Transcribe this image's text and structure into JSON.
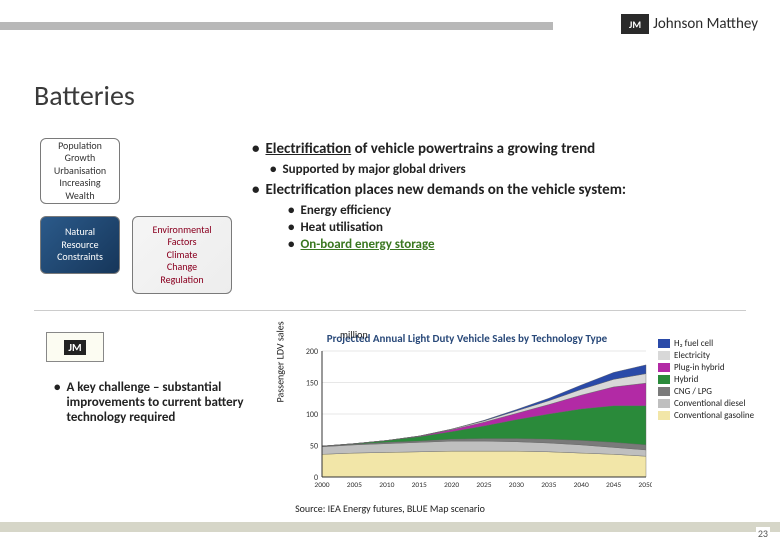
{
  "logo": {
    "initials": "JM",
    "name": "Johnson Matthey"
  },
  "title": "Batteries",
  "driver_boxes": {
    "box1": [
      "Population",
      "Growth",
      "Urbanisation",
      "Increasing",
      "Wealth"
    ],
    "box2": [
      "Natural",
      "Resource",
      "Constraints"
    ],
    "box3": [
      "Environmental",
      "Factors",
      "Climate",
      "Change",
      "Regulation"
    ]
  },
  "bullets": {
    "a": {
      "highlight": "Electrification",
      "rest": " of vehicle powertrains a growing trend"
    },
    "a1": "Supported by major global drivers",
    "b": "Electrification places new demands on the vehicle system:",
    "b1": "Energy efficiency",
    "b2": "Heat utilisation",
    "b3": "On-board energy storage"
  },
  "challenge": "A key challenge – substantial improvements to current battery technology required",
  "chart": {
    "title": "Projected Annual Light Duty Vehicle Sales by Technology Type",
    "unit": "million",
    "ylabel": "Passenger LDV sales",
    "xlim": [
      2000,
      2050
    ],
    "ylim": [
      0,
      200
    ],
    "yticks": [
      0,
      50,
      100,
      150,
      200
    ],
    "xticks": [
      2000,
      2005,
      2010,
      2015,
      2020,
      2025,
      2030,
      2035,
      2040,
      2045,
      2050
    ],
    "background_color": "#ffffff",
    "grid_color": "#cfcfcf",
    "series": [
      {
        "name": "Conventional gasoline",
        "color": "#f2e6a8",
        "values": [
          36,
          38,
          39,
          40,
          41,
          41,
          41,
          40,
          38,
          36,
          33
        ]
      },
      {
        "name": "Conventional diesel",
        "color": "#bfbfbf",
        "values": [
          12,
          13,
          14,
          15,
          16,
          16,
          15,
          14,
          13,
          11,
          10
        ]
      },
      {
        "name": "CNG / LPG",
        "color": "#7a7a7a",
        "values": [
          1,
          1,
          2,
          2,
          3,
          4,
          5,
          6,
          7,
          8,
          8
        ]
      },
      {
        "name": "Hybrid",
        "color": "#2a8a3a",
        "values": [
          0,
          1,
          3,
          7,
          12,
          20,
          30,
          40,
          50,
          58,
          62
        ]
      },
      {
        "name": "Plug-in hybrid",
        "color": "#b22aa5",
        "values": [
          0,
          0,
          0,
          1,
          3,
          6,
          10,
          15,
          22,
          30,
          36
        ]
      },
      {
        "name": "Electricity",
        "color": "#d8d8d8",
        "values": [
          0,
          0,
          0,
          0,
          1,
          2,
          4,
          6,
          9,
          12,
          15
        ]
      },
      {
        "name": "H₂ fuel cell",
        "color": "#2a4aa8",
        "values": [
          0,
          0,
          0,
          0,
          0,
          1,
          2,
          4,
          7,
          11,
          14
        ]
      }
    ],
    "legend_order": [
      "H₂ fuel cell",
      "Electricity",
      "Plug-in hybrid",
      "Hybrid",
      "CNG / LPG",
      "Conventional diesel",
      "Conventional gasoline"
    ]
  },
  "source": "Source: IEA Energy futures, BLUE Map scenario",
  "page": "23"
}
